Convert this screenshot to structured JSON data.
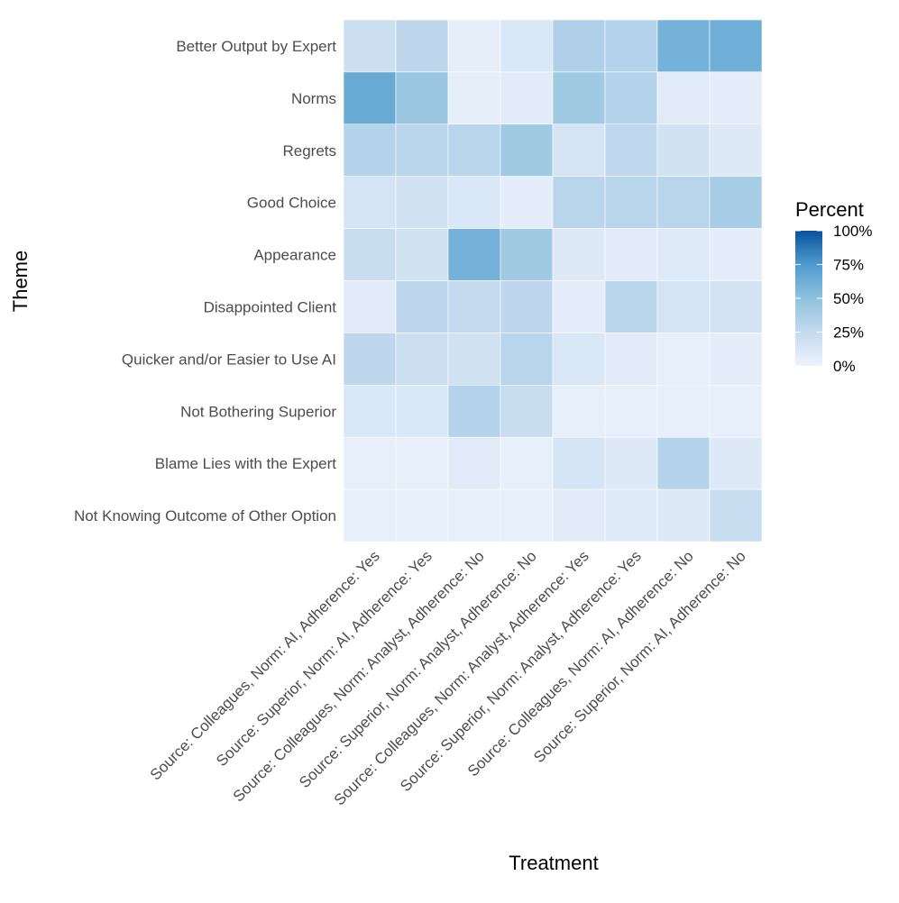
{
  "chart_data": {
    "type": "heatmap",
    "x_label": "Treatment",
    "y_label": "Theme",
    "x_categories": [
      "Source: Colleagues, Norm: AI, Adherence: Yes",
      "Source: Superior, Norm: AI, Adherence: Yes",
      "Source: Colleagues, Norm: Analyst, Adherence: No",
      "Source: Superior, Norm: Analyst, Adherence: No",
      "Source: Colleagues, Norm: Analyst, Adherence: Yes",
      "Source: Superior, Norm: Analyst, Adherence: Yes",
      "Source: Colleagues, Norm: AI, Adherence: No",
      "Source: Superior, Norm: AI, Adherence: No"
    ],
    "y_categories": [
      "Better Output by Expert",
      "Norms",
      "Regrets",
      "Good Choice",
      "Appearance",
      "Disappointed Client",
      "Quicker and/or Easier to Use AI",
      "Not Bothering Superior",
      "Blame Lies with the Expert",
      "Not Knowing Outcome of Other Option"
    ],
    "values": [
      [
        20,
        28,
        5,
        12,
        35,
        32,
        60,
        62
      ],
      [
        65,
        45,
        5,
        7,
        42,
        32,
        8,
        6
      ],
      [
        32,
        30,
        30,
        42,
        15,
        27,
        17,
        10
      ],
      [
        15,
        18,
        12,
        6,
        30,
        30,
        30,
        38
      ],
      [
        22,
        17,
        60,
        42,
        10,
        7,
        9,
        6
      ],
      [
        8,
        28,
        25,
        28,
        6,
        30,
        15,
        16
      ],
      [
        28,
        20,
        18,
        30,
        13,
        8,
        4,
        6
      ],
      [
        12,
        12,
        32,
        22,
        4,
        4,
        4,
        4
      ],
      [
        4,
        4,
        8,
        4,
        14,
        10,
        32,
        10
      ],
      [
        4,
        4,
        4,
        4,
        8,
        9,
        10,
        22
      ]
    ],
    "legend_title": "Percent",
    "zlim": [
      0,
      100
    ],
    "zticks": [
      {
        "value": 0,
        "label": "0%"
      },
      {
        "value": 25,
        "label": "25%"
      },
      {
        "value": 50,
        "label": "50%"
      },
      {
        "value": 75,
        "label": "75%"
      },
      {
        "value": 100,
        "label": "100%"
      }
    ],
    "colorscale": [
      "#eef3fd",
      "#c4daee",
      "#8fc1df",
      "#4f9bcf",
      "#08519c"
    ],
    "legend_position": "right"
  }
}
